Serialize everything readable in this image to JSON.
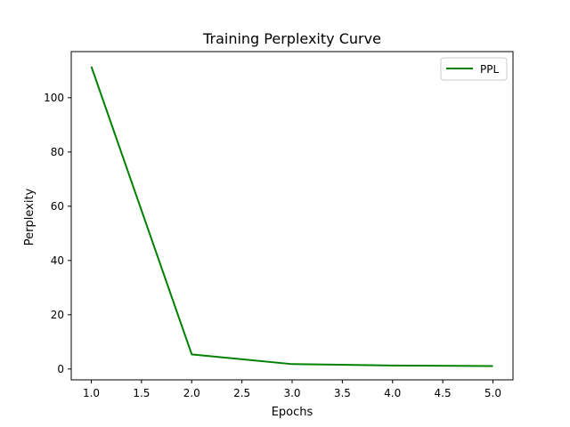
{
  "chart_data": {
    "type": "line",
    "title": "Training Perplexity Curve",
    "xlabel": "Epochs",
    "ylabel": "Perplexity",
    "xlim": [
      0.8,
      5.2
    ],
    "ylim": [
      -4.0,
      117.0
    ],
    "x_ticks": [
      1.0,
      1.5,
      2.0,
      2.5,
      3.0,
      3.5,
      4.0,
      4.5,
      5.0
    ],
    "x_tick_labels": [
      "1.0",
      "1.5",
      "2.0",
      "2.5",
      "3.0",
      "3.5",
      "4.0",
      "4.5",
      "5.0"
    ],
    "y_ticks": [
      0,
      20,
      40,
      60,
      80,
      100
    ],
    "y_tick_labels": [
      "0",
      "20",
      "40",
      "60",
      "80",
      "100"
    ],
    "grid": false,
    "legend_position": "top-right",
    "series": [
      {
        "name": "PPL",
        "color": "#008000",
        "x": [
          1,
          2,
          3,
          4,
          5
        ],
        "y": [
          111.5,
          5.4,
          1.8,
          1.3,
          1.1
        ]
      }
    ]
  }
}
